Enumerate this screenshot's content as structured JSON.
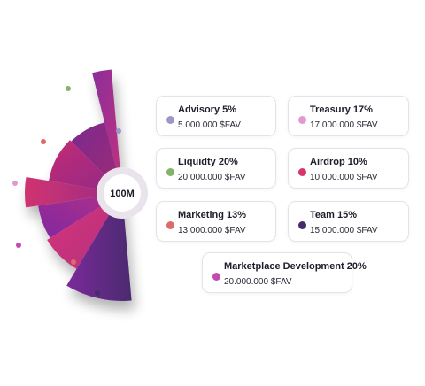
{
  "chart_data": {
    "type": "pie",
    "center_label": "100M",
    "slices": [
      {
        "label": "Advisory 5%",
        "value": 5,
        "amount": "5.000.000 $FAV",
        "color": "#9b97c9"
      },
      {
        "label": "Treasury 17%",
        "value": 17,
        "amount": "17.000.000 $FAV",
        "color": "#df9bd0"
      },
      {
        "label": "Liquidty 20%",
        "value": 20,
        "amount": "20.000.000 $FAV",
        "color": "#84b468"
      },
      {
        "label": "Airdrop 10%",
        "value": 10,
        "amount": "10.000.000 $FAV",
        "color": "#d8356f"
      },
      {
        "label": "Marketing 13%",
        "value": 13,
        "amount": "13.000.000 $FAV",
        "color": "#de6a6a"
      },
      {
        "label": "Team 15%",
        "value": 15,
        "amount": "15.000.000 $FAV",
        "color": "#482a6c"
      },
      {
        "label": "Marketplace Development 20%",
        "value": 20,
        "amount": "20.000.000 $FAV",
        "color": "#c54ab0"
      }
    ]
  }
}
